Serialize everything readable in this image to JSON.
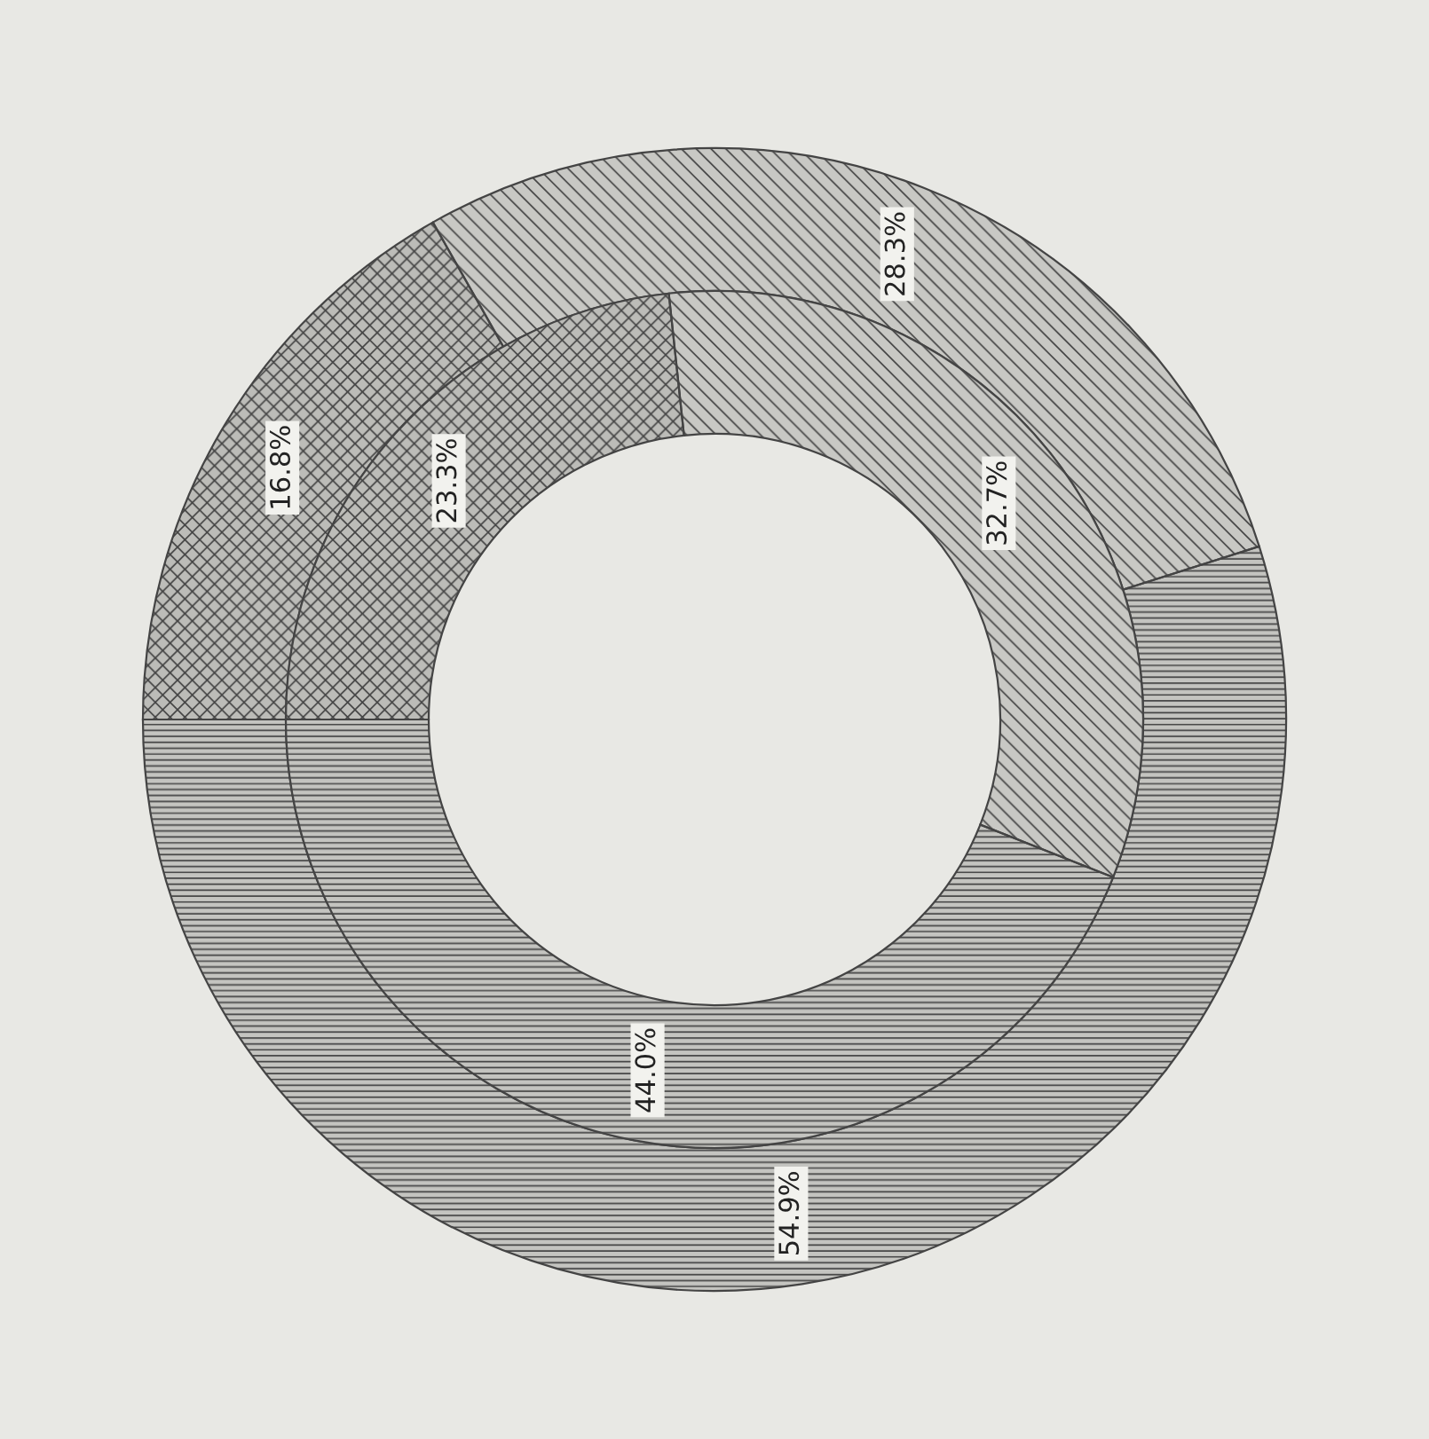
{
  "chart_data": {
    "type": "donut",
    "categories": [
      null,
      null,
      null
    ],
    "series": [
      {
        "values": [
          54.9,
          28.3,
          16.8
        ],
        "colors": [
          "#c4c4c0",
          "#c8c8c4",
          "#bcbcb8"
        ],
        "value_labels": [
          "54.9%",
          "28.3%",
          "16.8%"
        ]
      },
      {
        "values": [
          44.0,
          32.7,
          23.3
        ],
        "colors": [
          "#c4c4c0",
          "#c8c8c4",
          "#bcbcb8"
        ],
        "value_labels": [
          "44.0%",
          "32.7%",
          "23.3%"
        ]
      }
    ]
  }
}
